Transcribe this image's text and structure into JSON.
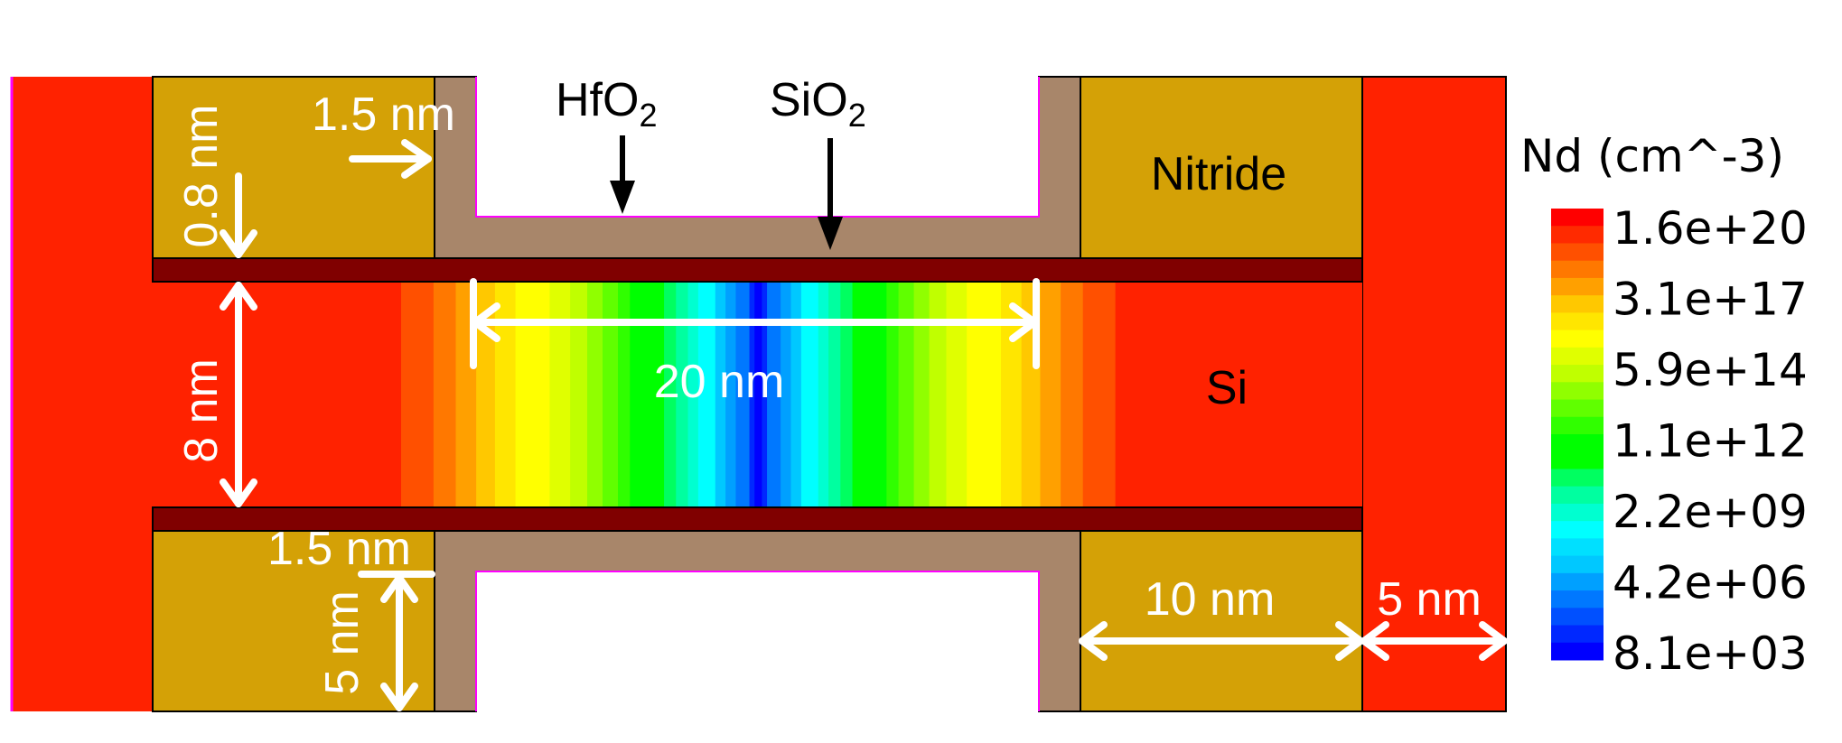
{
  "regions": {
    "nitride": "Nitride",
    "si": "Si",
    "hfo2": {
      "base": "HfO",
      "sub": "2"
    },
    "sio2": {
      "base": "SiO",
      "sub": "2"
    }
  },
  "dimensions": {
    "spacer_top": "1.5 nm",
    "oxide_thickness": "0.8 nm",
    "channel_thickness": "8 nm",
    "gate_length": "20 nm",
    "spacer_bottom": "1.5 nm",
    "gate_height": "5 nm",
    "nitride_width": "10 nm",
    "contact_width": "5 nm"
  },
  "colorbar": {
    "title": "Nd (cm^-3)",
    "labels": [
      "1.6e+20",
      "3.1e+17",
      "5.9e+14",
      "1.1e+12",
      "2.2e+09",
      "4.2e+06",
      "8.1e+03"
    ],
    "colormap": [
      "#ff0000",
      "#ff2a00",
      "#ff5000",
      "#ff7800",
      "#ffa000",
      "#ffc800",
      "#ffe600",
      "#ffff00",
      "#e0ff00",
      "#c0ff00",
      "#90ff00",
      "#60ff00",
      "#30ff00",
      "#00ff00",
      "#00ff00",
      "#00ff60",
      "#00ffa0",
      "#00ffd0",
      "#00ffff",
      "#00e0ff",
      "#00c8ff",
      "#00a0ff",
      "#0078ff",
      "#0050ff",
      "#0028ff",
      "#0000ff"
    ]
  },
  "colors": {
    "si": "#ff2200",
    "nitride": "#d4a106",
    "hfo2": "#a8866a",
    "sio2": "#800000",
    "outline": "#ff00ff"
  }
}
